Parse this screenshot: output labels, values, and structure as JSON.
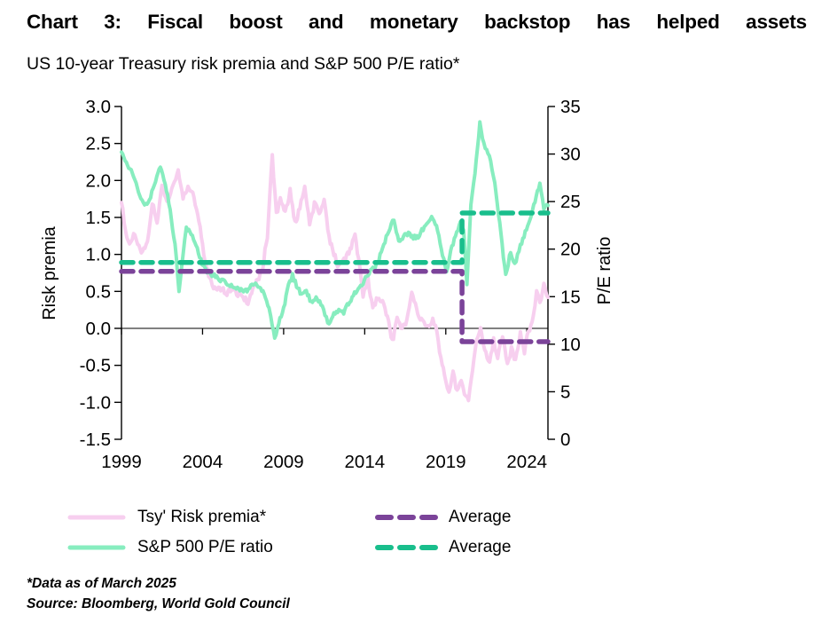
{
  "chart_data": {
    "type": "line",
    "title": "Chart 3: Fiscal boost and monetary backstop has helped assets",
    "subtitle": "US 10-year Treasury risk premia and S&P 500 P/E ratio*",
    "grid": "zero-line-only",
    "legend_position": "bottom",
    "x_axis": {
      "min": 1999.0,
      "max": 2025.3,
      "tick_values": [
        1999,
        2004,
        2009,
        2014,
        2019,
        2024
      ],
      "tick_labels": [
        "1999",
        "2004",
        "2009",
        "2014",
        "2019",
        "2024"
      ]
    },
    "left_axis": {
      "label": "Risk premia",
      "min": -1.5,
      "max": 3.0,
      "tick_values": [
        3.0,
        2.5,
        2.0,
        1.5,
        1.0,
        0.5,
        0.0,
        -0.5,
        -1.0,
        -1.5
      ],
      "tick_labels": [
        "3.0",
        "2.5",
        "2.0",
        "1.5",
        "1.0",
        "0.5",
        "0.0",
        "-0.5",
        "-1.0",
        "-1.5"
      ]
    },
    "right_axis": {
      "label": "P/E ratio",
      "min": 0,
      "max": 35,
      "tick_values": [
        35,
        30,
        25,
        20,
        15,
        10,
        5,
        0
      ],
      "tick_labels": [
        "35",
        "30",
        "25",
        "20",
        "15",
        "10",
        "5",
        "0"
      ]
    },
    "series": [
      {
        "name": "Tsy' Risk premia*",
        "axis": "left",
        "style": "solid",
        "color": "#F7CFEF",
        "points": [
          [
            1999.0,
            1.7
          ],
          [
            1999.25,
            1.35
          ],
          [
            1999.5,
            1.1
          ],
          [
            1999.75,
            1.28
          ],
          [
            2000.0,
            1.12
          ],
          [
            2000.3,
            1.02
          ],
          [
            2000.6,
            1.18
          ],
          [
            2000.9,
            1.68
          ],
          [
            2001.2,
            1.45
          ],
          [
            2001.5,
            1.95
          ],
          [
            2001.8,
            1.72
          ],
          [
            2002.1,
            1.88
          ],
          [
            2002.5,
            2.1
          ],
          [
            2002.8,
            1.78
          ],
          [
            2003.1,
            1.92
          ],
          [
            2003.4,
            1.82
          ],
          [
            2003.7,
            1.55
          ],
          [
            2004.0,
            1.12
          ],
          [
            2004.3,
            0.78
          ],
          [
            2004.6,
            0.58
          ],
          [
            2004.9,
            0.52
          ],
          [
            2005.2,
            0.56
          ],
          [
            2005.5,
            0.46
          ],
          [
            2005.8,
            0.55
          ],
          [
            2006.1,
            0.48
          ],
          [
            2006.5,
            0.4
          ],
          [
            2006.8,
            0.36
          ],
          [
            2007.1,
            0.55
          ],
          [
            2007.4,
            0.66
          ],
          [
            2007.7,
            0.82
          ],
          [
            2008.0,
            1.25
          ],
          [
            2008.3,
            2.35
          ],
          [
            2008.55,
            1.55
          ],
          [
            2008.8,
            1.75
          ],
          [
            2009.1,
            1.55
          ],
          [
            2009.4,
            1.85
          ],
          [
            2009.7,
            1.42
          ],
          [
            2010.0,
            1.62
          ],
          [
            2010.3,
            1.9
          ],
          [
            2010.6,
            1.42
          ],
          [
            2010.9,
            1.68
          ],
          [
            2011.2,
            1.58
          ],
          [
            2011.5,
            1.72
          ],
          [
            2011.8,
            1.22
          ],
          [
            2012.1,
            1.0
          ],
          [
            2012.4,
            0.82
          ],
          [
            2012.8,
            0.95
          ],
          [
            2013.1,
            1.05
          ],
          [
            2013.4,
            1.28
          ],
          [
            2013.7,
            0.8
          ],
          [
            2013.9,
            0.46
          ],
          [
            2014.2,
            0.66
          ],
          [
            2014.5,
            0.3
          ],
          [
            2014.8,
            0.42
          ],
          [
            2015.1,
            0.36
          ],
          [
            2015.4,
            0.15
          ],
          [
            2015.7,
            -0.18
          ],
          [
            2016.0,
            0.12
          ],
          [
            2016.3,
            -0.02
          ],
          [
            2016.6,
            0.1
          ],
          [
            2016.9,
            0.45
          ],
          [
            2017.2,
            0.28
          ],
          [
            2017.5,
            0.1
          ],
          [
            2017.9,
            0.05
          ],
          [
            2018.2,
            0.12
          ],
          [
            2018.45,
            -0.05
          ],
          [
            2018.7,
            -0.4
          ],
          [
            2019.0,
            -0.75
          ],
          [
            2019.2,
            -0.88
          ],
          [
            2019.45,
            -0.62
          ],
          [
            2019.7,
            -0.85
          ],
          [
            2019.95,
            -0.7
          ],
          [
            2020.15,
            -0.88
          ],
          [
            2020.4,
            -1.0
          ],
          [
            2020.65,
            -0.55
          ],
          [
            2020.9,
            -0.15
          ],
          [
            2021.15,
            0.02
          ],
          [
            2021.4,
            -0.3
          ],
          [
            2021.7,
            -0.45
          ],
          [
            2021.95,
            -0.15
          ],
          [
            2022.2,
            -0.4
          ],
          [
            2022.5,
            -0.12
          ],
          [
            2022.8,
            -0.48
          ],
          [
            2023.05,
            -0.28
          ],
          [
            2023.3,
            -0.45
          ],
          [
            2023.6,
            -0.05
          ],
          [
            2023.85,
            -0.3
          ],
          [
            2024.1,
            -0.05
          ],
          [
            2024.4,
            0.15
          ],
          [
            2024.6,
            0.52
          ],
          [
            2024.8,
            0.32
          ],
          [
            2025.05,
            0.62
          ],
          [
            2025.3,
            0.42
          ]
        ]
      },
      {
        "name": "S&P 500 P/E ratio",
        "axis": "right",
        "style": "solid",
        "color": "#87EDBF",
        "points": [
          [
            1999.0,
            30.2
          ],
          [
            1999.3,
            29.0
          ],
          [
            1999.6,
            28.2
          ],
          [
            1999.9,
            26.8
          ],
          [
            2000.2,
            25.4
          ],
          [
            2000.5,
            24.6
          ],
          [
            2000.8,
            25.6
          ],
          [
            2001.1,
            27.0
          ],
          [
            2001.4,
            28.8
          ],
          [
            2001.7,
            27.0
          ],
          [
            2002.0,
            24.0
          ],
          [
            2002.3,
            20.5
          ],
          [
            2002.55,
            15.6
          ],
          [
            2002.8,
            19.5
          ],
          [
            2003.0,
            22.3
          ],
          [
            2003.3,
            21.6
          ],
          [
            2003.6,
            20.3
          ],
          [
            2003.9,
            18.8
          ],
          [
            2004.2,
            17.8
          ],
          [
            2004.5,
            17.4
          ],
          [
            2004.8,
            17.1
          ],
          [
            2005.1,
            16.8
          ],
          [
            2005.4,
            16.5
          ],
          [
            2005.7,
            16.3
          ],
          [
            2006.0,
            16.0
          ],
          [
            2006.3,
            15.7
          ],
          [
            2006.6,
            15.5
          ],
          [
            2006.9,
            15.9
          ],
          [
            2007.2,
            16.4
          ],
          [
            2007.5,
            16.0
          ],
          [
            2007.8,
            15.3
          ],
          [
            2008.1,
            13.8
          ],
          [
            2008.3,
            12.0
          ],
          [
            2008.45,
            10.5
          ],
          [
            2008.7,
            12.2
          ],
          [
            2009.0,
            13.8
          ],
          [
            2009.3,
            16.2
          ],
          [
            2009.55,
            17.2
          ],
          [
            2009.8,
            16.2
          ],
          [
            2010.1,
            15.2
          ],
          [
            2010.4,
            15.6
          ],
          [
            2010.7,
            14.4
          ],
          [
            2011.0,
            15.0
          ],
          [
            2011.3,
            14.3
          ],
          [
            2011.55,
            13.0
          ],
          [
            2011.8,
            12.1
          ],
          [
            2012.1,
            13.2
          ],
          [
            2012.4,
            13.6
          ],
          [
            2012.7,
            13.3
          ],
          [
            2013.0,
            14.3
          ],
          [
            2013.3,
            15.1
          ],
          [
            2013.6,
            15.9
          ],
          [
            2013.9,
            16.5
          ],
          [
            2014.2,
            17.3
          ],
          [
            2014.5,
            17.9
          ],
          [
            2014.8,
            18.6
          ],
          [
            2015.1,
            20.0
          ],
          [
            2015.4,
            21.6
          ],
          [
            2015.8,
            23.2
          ],
          [
            2016.1,
            20.8
          ],
          [
            2016.4,
            21.3
          ],
          [
            2016.7,
            21.7
          ],
          [
            2017.0,
            21.2
          ],
          [
            2017.3,
            21.4
          ],
          [
            2017.6,
            22.1
          ],
          [
            2017.9,
            22.8
          ],
          [
            2018.2,
            23.4
          ],
          [
            2018.5,
            22.0
          ],
          [
            2018.8,
            19.5
          ],
          [
            2019.05,
            17.4
          ],
          [
            2019.3,
            19.8
          ],
          [
            2019.6,
            21.4
          ],
          [
            2019.9,
            22.7
          ],
          [
            2020.1,
            22.2
          ],
          [
            2020.3,
            16.4
          ],
          [
            2020.55,
            24.5
          ],
          [
            2020.8,
            28.0
          ],
          [
            2021.1,
            33.2
          ],
          [
            2021.35,
            31.0
          ],
          [
            2021.6,
            30.2
          ],
          [
            2021.85,
            28.5
          ],
          [
            2022.1,
            26.0
          ],
          [
            2022.4,
            21.5
          ],
          [
            2022.7,
            17.2
          ],
          [
            2023.0,
            19.8
          ],
          [
            2023.25,
            18.3
          ],
          [
            2023.6,
            20.3
          ],
          [
            2023.9,
            21.8
          ],
          [
            2024.2,
            23.3
          ],
          [
            2024.5,
            25.0
          ],
          [
            2024.8,
            26.9
          ],
          [
            2025.05,
            24.2
          ],
          [
            2025.3,
            24.6
          ]
        ]
      },
      {
        "name": "Average",
        "axis": "left",
        "style": "dashed",
        "color": "#7B4399",
        "points": [
          [
            1999.0,
            0.77
          ],
          [
            2020.0,
            0.77
          ],
          [
            2020.0,
            -0.18
          ],
          [
            2025.3,
            -0.18
          ]
        ]
      },
      {
        "name": "Average",
        "axis": "right",
        "style": "dashed",
        "color": "#19BE8C",
        "points": [
          [
            1999.0,
            18.6
          ],
          [
            2020.0,
            18.6
          ],
          [
            2020.0,
            23.8
          ],
          [
            2025.3,
            23.8
          ]
        ]
      }
    ]
  },
  "footnotes": {
    "data_note": "*Data as of March 2025",
    "source": "Source: Bloomberg, World Gold Council"
  }
}
